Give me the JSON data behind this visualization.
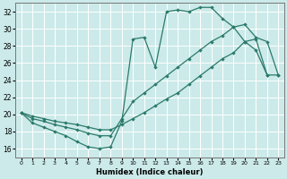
{
  "xlabel": "Humidex (Indice chaleur)",
  "bg_color": "#cceaea",
  "grid_color": "#b8d8d8",
  "line_color": "#2a7a6a",
  "xlim": [
    -0.5,
    23.5
  ],
  "ylim": [
    15.0,
    33.0
  ],
  "yticks": [
    16,
    18,
    20,
    22,
    24,
    26,
    28,
    30,
    32
  ],
  "xticks": [
    0,
    1,
    2,
    3,
    4,
    5,
    6,
    7,
    8,
    9,
    10,
    11,
    12,
    13,
    14,
    15,
    16,
    17,
    18,
    19,
    20,
    21,
    22,
    23
  ],
  "curve_upper_x": [
    0,
    1,
    2,
    3,
    4,
    5,
    6,
    7,
    8,
    9,
    10,
    11,
    12,
    13,
    14,
    15,
    16,
    17,
    18,
    19,
    20,
    21,
    22
  ],
  "curve_upper_y": [
    20.2,
    19.0,
    18.5,
    18.0,
    17.5,
    16.8,
    16.2,
    16.0,
    16.2,
    19.2,
    28.8,
    29.0,
    25.5,
    32.0,
    32.2,
    32.0,
    32.5,
    32.5,
    31.2,
    30.2,
    28.5,
    27.5,
    24.6
  ],
  "curve_middle_x": [
    0,
    1,
    2,
    3,
    4,
    5,
    6,
    7,
    8,
    9,
    10,
    11,
    12,
    13,
    14,
    15,
    16,
    17,
    18,
    19,
    20,
    21,
    22,
    23
  ],
  "curve_middle_y": [
    20.2,
    19.5,
    19.2,
    18.8,
    18.5,
    18.2,
    17.8,
    17.5,
    17.5,
    19.5,
    21.5,
    22.5,
    23.5,
    24.5,
    25.5,
    26.5,
    27.5,
    28.5,
    29.2,
    30.2,
    30.5,
    29.0,
    28.5,
    24.6
  ],
  "curve_lower_x": [
    0,
    1,
    2,
    3,
    4,
    5,
    6,
    7,
    8,
    9,
    10,
    11,
    12,
    13,
    14,
    15,
    16,
    17,
    18,
    19,
    20,
    21,
    22,
    23
  ],
  "curve_lower_y": [
    20.2,
    19.8,
    19.5,
    19.2,
    19.0,
    18.8,
    18.5,
    18.2,
    18.2,
    18.8,
    19.5,
    20.2,
    21.0,
    21.8,
    22.5,
    23.5,
    24.5,
    25.5,
    26.5,
    27.2,
    28.5,
    28.8,
    24.6,
    24.6
  ]
}
